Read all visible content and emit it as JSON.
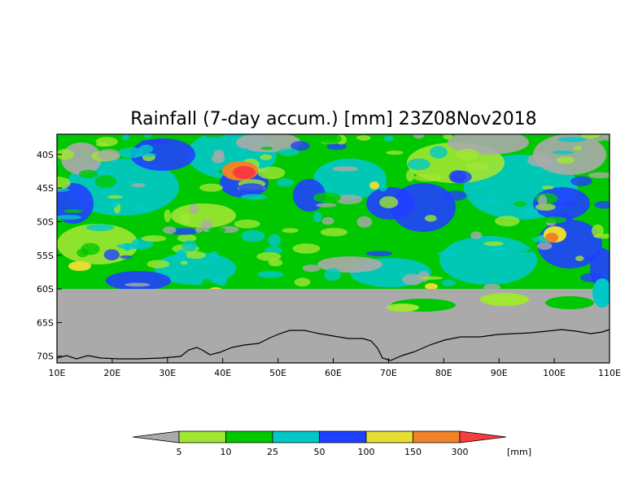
{
  "title": "Rainfall (7-day accum.) [mm] 23Z08Nov2018",
  "map": {
    "lon_range": [
      10,
      110
    ],
    "lat_range": [
      -71,
      -37
    ],
    "lat_labels": [
      "40S",
      "45S",
      "50S",
      "55S",
      "60S",
      "65S",
      "70S"
    ],
    "lat_values": [
      -40,
      -45,
      -50,
      -55,
      -60,
      -65,
      -70
    ],
    "lon_labels": [
      "10E",
      "20E",
      "30E",
      "40E",
      "50E",
      "60E",
      "70E",
      "80E",
      "90E",
      "100E",
      "110E"
    ],
    "lon_values": [
      10,
      20,
      30,
      40,
      50,
      60,
      70,
      80,
      90,
      100,
      110
    ],
    "data_coverage_south_limit": -60,
    "no_data_color": "#aaaaaa",
    "coast_color": "#000000"
  },
  "colorbar": {
    "unit": "[mm]",
    "levels": [
      "5",
      "10",
      "25",
      "50",
      "100",
      "150",
      "300"
    ],
    "colors": [
      "#aaaaaa",
      "#a0e632",
      "#00c800",
      "#00c8c8",
      "#2040ff",
      "#e6dc32",
      "#f08228",
      "#fa3c3c"
    ]
  }
}
